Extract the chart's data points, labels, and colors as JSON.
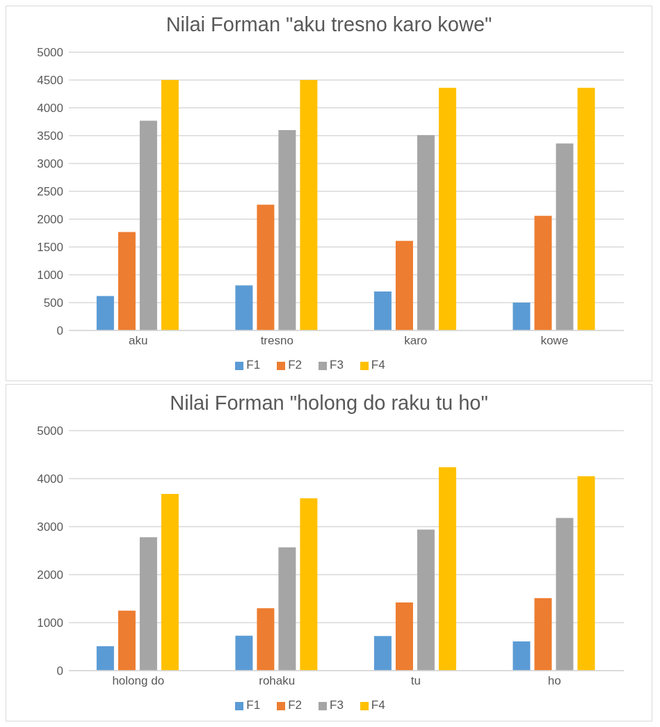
{
  "chart_data": [
    {
      "type": "bar",
      "title": "Nilai Forman \"aku tresno karo kowe\"",
      "categories": [
        "aku",
        "tresno",
        "karo",
        "kowe"
      ],
      "series": [
        {
          "name": "F1",
          "color": "#5b9bd5",
          "values": [
            620,
            810,
            700,
            500
          ]
        },
        {
          "name": "F2",
          "color": "#ed7d31",
          "values": [
            1770,
            2260,
            1610,
            2060
          ]
        },
        {
          "name": "F3",
          "color": "#a5a5a5",
          "values": [
            3770,
            3600,
            3510,
            3360
          ]
        },
        {
          "name": "F4",
          "color": "#ffc000",
          "values": [
            4500,
            4500,
            4360,
            4360
          ]
        }
      ],
      "ylim": [
        0,
        5000
      ],
      "yticks": [
        0,
        500,
        1000,
        1500,
        2000,
        2500,
        3000,
        3500,
        4000,
        4500,
        5000
      ],
      "grid": "y",
      "legend": "bottom"
    },
    {
      "type": "bar",
      "title": "Nilai Forman \"holong do raku tu ho\"",
      "categories": [
        "holong do",
        "rohaku",
        "tu",
        "ho"
      ],
      "series": [
        {
          "name": "F1",
          "color": "#5b9bd5",
          "values": [
            510,
            730,
            720,
            610
          ]
        },
        {
          "name": "F2",
          "color": "#ed7d31",
          "values": [
            1250,
            1300,
            1420,
            1510
          ]
        },
        {
          "name": "F3",
          "color": "#a5a5a5",
          "values": [
            2780,
            2570,
            2940,
            3180
          ]
        },
        {
          "name": "F4",
          "color": "#ffc000",
          "values": [
            3680,
            3590,
            4240,
            4050
          ]
        }
      ],
      "ylim": [
        0,
        5000
      ],
      "yticks": [
        0,
        1000,
        2000,
        3000,
        4000,
        5000
      ],
      "grid": "y",
      "legend": "bottom"
    }
  ]
}
